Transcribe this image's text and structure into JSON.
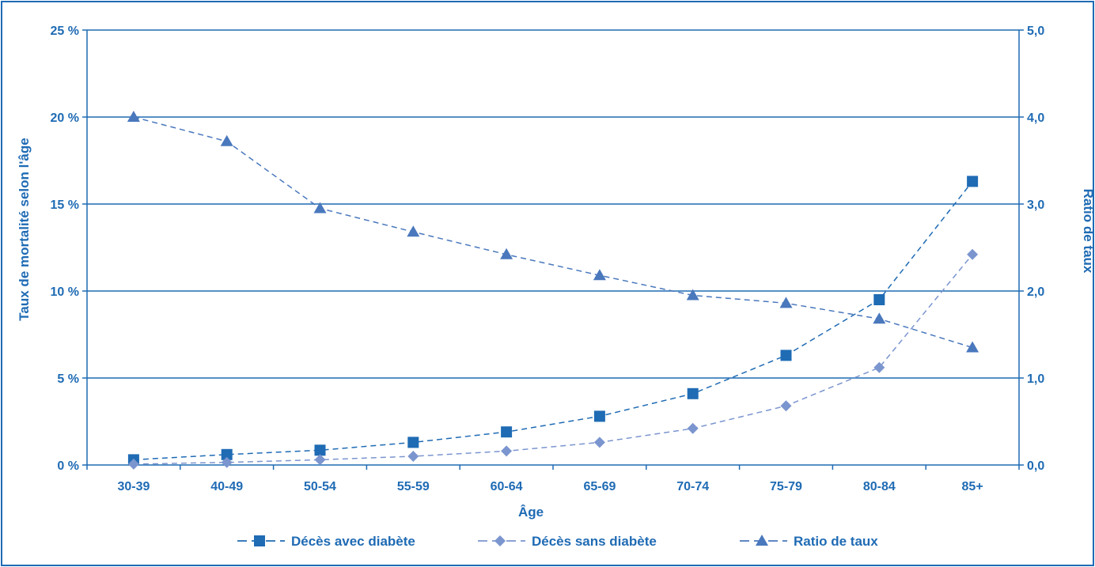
{
  "chart_data": {
    "type": "line",
    "title": "",
    "xlabel": "Âge",
    "ylabel_left": "Taux de mortalité selon l'âge",
    "ylabel_right": "Ratio de taux",
    "categories": [
      "30-39",
      "40-49",
      "50-54",
      "55-59",
      "60-64",
      "65-69",
      "70-74",
      "75-79",
      "80-84",
      "85+"
    ],
    "y_left": {
      "lim": [
        0,
        25
      ],
      "ticks": [
        0,
        5,
        10,
        15,
        20,
        25
      ],
      "tick_labels": [
        "0 %",
        "5 %",
        "10 %",
        "15 %",
        "20 %",
        "25 %"
      ]
    },
    "y_right": {
      "lim": [
        0,
        5
      ],
      "ticks": [
        0,
        1,
        2,
        3,
        4,
        5
      ],
      "tick_labels": [
        "0,0",
        "1,0",
        "2,0",
        "3,0",
        "4,0",
        "5,0"
      ]
    },
    "grid": "horizontal",
    "legend_position": "bottom",
    "series": [
      {
        "name": "Décès avec diabète",
        "axis": "left",
        "marker": "square",
        "color": "#1f6bb4",
        "values": [
          0.3,
          0.6,
          0.85,
          1.3,
          1.9,
          2.8,
          4.1,
          6.3,
          9.5,
          16.3
        ]
      },
      {
        "name": "Décès sans diabète",
        "axis": "left",
        "marker": "diamond",
        "color": "#7b95cf",
        "values": [
          0.05,
          0.15,
          0.3,
          0.5,
          0.8,
          1.3,
          2.1,
          3.4,
          5.6,
          12.1
        ]
      },
      {
        "name": "Ratio de taux",
        "axis": "right",
        "marker": "triangle",
        "color": "#4a78bd",
        "values": [
          4.0,
          3.72,
          2.95,
          2.68,
          2.42,
          2.18,
          1.95,
          1.86,
          1.68,
          1.35
        ]
      }
    ]
  }
}
